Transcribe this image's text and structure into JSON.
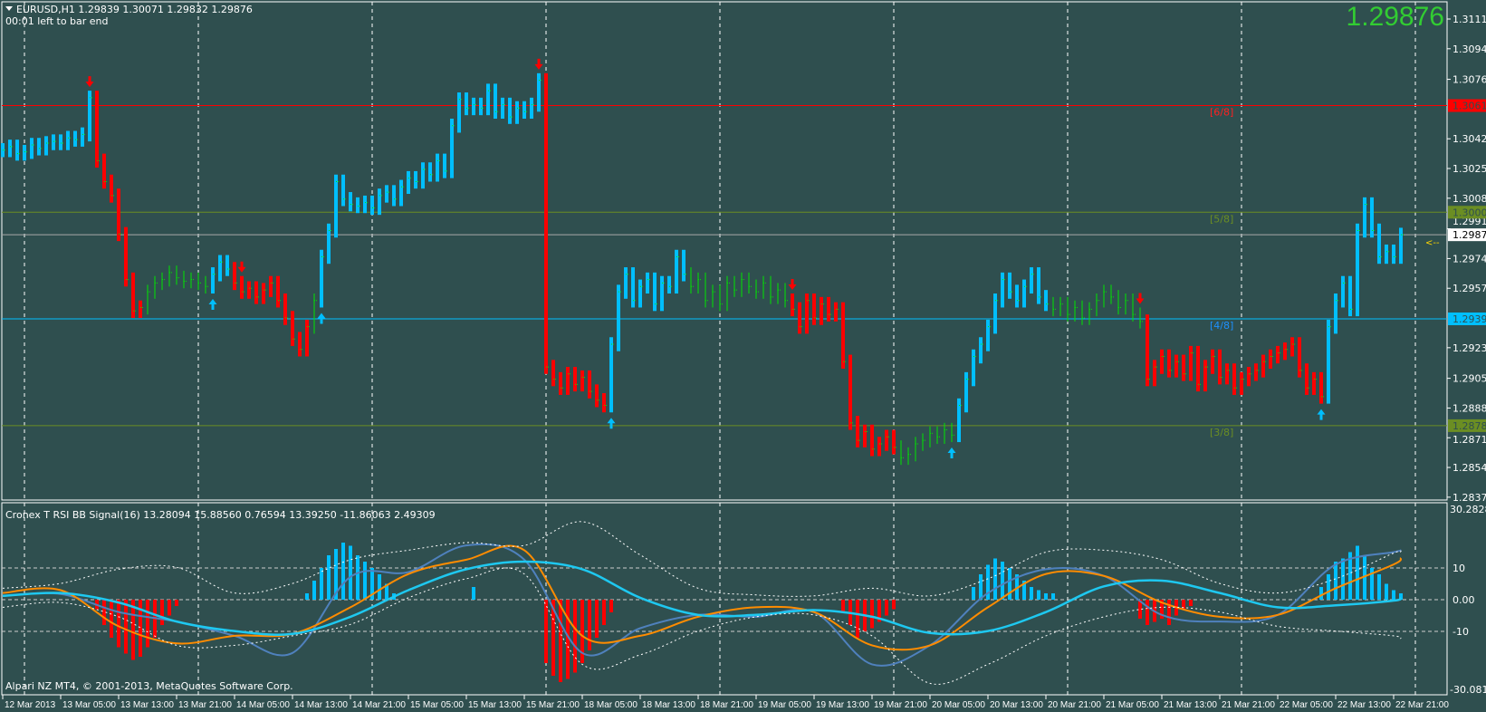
{
  "header": {
    "symbol_line": "EURUSD,H1  1.29839 1.30071 1.29832 1.29876",
    "timer": "00:01 left to bar end",
    "big_price": "1.29876"
  },
  "indicator": {
    "title": "Cronex T RSI BB Signal(16) 13.28094 15.88560 0.76594 13.39250 -11.86063 2.49309",
    "axis_max": "30.28286",
    "axis_min": "-30.08158",
    "levels": [
      "10",
      "0.00",
      "-10"
    ]
  },
  "footer": {
    "copyright": "Alpari NZ MT4, © 2001-2013, MetaQuotes Software Corp."
  },
  "colors": {
    "background": "#2f4f4f",
    "bull": "#00bfff",
    "bear": "#ff0000",
    "neutral": "#00e600",
    "rsi": "#4f81bd",
    "signal": "#ff8c00",
    "slow": "#1ec8f0",
    "bands": "#ffffff"
  },
  "chart_data": [
    {
      "type": "bar",
      "title": "EURUSD,H1",
      "price_ticks": [
        "1.31110",
        "1.30940",
        "1.30765",
        "1.30425",
        "1.30255",
        "1.30085",
        "1.29910",
        "1.29740",
        "1.29570",
        "1.29230",
        "1.29055",
        "1.28885",
        "1.28715",
        "1.28545",
        "1.28375"
      ],
      "date_ticks": [
        "12 Mar 2013",
        "13 Mar 05:00",
        "13 Mar 13:00",
        "13 Mar 21:00",
        "14 Mar 05:00",
        "14 Mar 13:00",
        "14 Mar 21:00",
        "15 Mar 05:00",
        "15 Mar 13:00",
        "15 Mar 21:00",
        "18 Mar 05:00",
        "18 Mar 13:00",
        "18 Mar 21:00",
        "19 Mar 05:00",
        "19 Mar 13:00",
        "19 Mar 21:00",
        "20 Mar 05:00",
        "20 Mar 13:00",
        "20 Mar 21:00",
        "21 Mar 05:00",
        "21 Mar 13:00",
        "21 Mar 21:00",
        "22 Mar 05:00",
        "22 Mar 13:00",
        "22 Mar 21:00"
      ],
      "closes": [
        1.3036,
        1.3038,
        1.3034,
        1.3035,
        1.3039,
        1.3037,
        1.304,
        1.3041,
        1.304,
        1.3043,
        1.3042,
        1.3045,
        1.3066,
        1.303,
        1.3018,
        1.301,
        1.2988,
        1.2962,
        1.2944,
        1.2946,
        1.2955,
        1.296,
        1.2962,
        1.2966,
        1.2963,
        1.2961,
        1.2962,
        1.296,
        1.2958,
        1.2965,
        1.2972,
        1.2968,
        1.296,
        1.2955,
        1.2957,
        1.2952,
        1.2956,
        1.296,
        1.295,
        1.294,
        1.2928,
        1.2922,
        1.2935,
        1.295,
        1.2975,
        1.299,
        1.3018,
        1.3008,
        1.3005,
        1.3004,
        1.3006,
        1.3003,
        1.301,
        1.3012,
        1.3008,
        1.3015,
        1.302,
        1.3018,
        1.3025,
        1.3022,
        1.303,
        1.3024,
        1.305,
        1.3065,
        1.306,
        1.3062,
        1.306,
        1.307,
        1.3058,
        1.3062,
        1.3055,
        1.306,
        1.3058,
        1.3062,
        1.3076,
        1.2912,
        1.2905,
        1.29,
        1.2908,
        1.2902,
        1.2906,
        1.2898,
        1.2893,
        1.289,
        1.2925,
        1.2955,
        1.2965,
        1.295,
        1.2958,
        1.2962,
        1.2948,
        1.296,
        1.2958,
        1.2975,
        1.2965,
        1.2958,
        1.2962,
        1.295,
        1.2955,
        1.2948,
        1.296,
        1.2956,
        1.2962,
        1.2958,
        1.2955,
        1.296,
        1.2952,
        1.2956,
        1.295,
        1.2945,
        1.2935,
        1.295,
        1.294,
        1.2948,
        1.2942,
        1.2945,
        1.2915,
        1.288,
        1.287,
        1.2875,
        1.2865,
        1.2868,
        1.2872,
        1.2866,
        1.286,
        1.2862,
        1.2868,
        1.287,
        1.2874,
        1.2872,
        1.2876,
        1.2873,
        1.289,
        1.2905,
        1.2918,
        1.2925,
        1.2935,
        1.295,
        1.2962,
        1.2955,
        1.295,
        1.2958,
        1.2965,
        1.2952,
        1.2948,
        1.2945,
        1.2948,
        1.2942,
        1.2946,
        1.294,
        1.2945,
        1.295,
        1.2955,
        1.2952,
        1.2946,
        1.295,
        1.2942,
        1.2938,
        1.2905,
        1.2912,
        1.2918,
        1.291,
        1.2915,
        1.2908,
        1.292,
        1.2902,
        1.2912,
        1.2918,
        1.2906,
        1.291,
        1.29,
        1.2905,
        1.2908,
        1.291,
        1.2915,
        1.2918,
        1.292,
        1.2922,
        1.2925,
        1.291,
        1.29,
        1.2905,
        1.2895,
        1.2935,
        1.295,
        1.296,
        1.2945,
        1.299,
        1.3005,
        1.299,
        1.2975,
        1.2978,
        1.2975,
        1.29876
      ],
      "bar_colors": [
        [
          "bull",
          13
        ],
        [
          "bear",
          7
        ],
        [
          "neutral",
          9
        ],
        [
          "bull",
          3
        ],
        [
          "bear",
          11
        ],
        [
          "neutral",
          1
        ],
        [
          "bull",
          31
        ],
        [
          "bear",
          9
        ],
        [
          "bull",
          11
        ],
        [
          "neutral",
          14
        ],
        [
          "bear",
          15
        ],
        [
          "neutral",
          8
        ],
        [
          "bull",
          13
        ],
        [
          "neutral",
          13
        ],
        [
          "bear",
          25
        ],
        [
          "bull",
          11
        ]
      ],
      "arrows": [
        {
          "bar": 12,
          "dir": "down"
        },
        {
          "bar": 33,
          "dir": "down"
        },
        {
          "bar": 74,
          "dir": "down"
        },
        {
          "bar": 109,
          "dir": "down"
        },
        {
          "bar": 157,
          "dir": "down"
        },
        {
          "bar": 29,
          "dir": "up"
        },
        {
          "bar": 44,
          "dir": "up"
        },
        {
          "bar": 84,
          "dir": "up"
        },
        {
          "bar": 131,
          "dir": "up"
        },
        {
          "bar": 182,
          "dir": "up"
        }
      ],
      "levels": [
        {
          "price": "1.30615",
          "label": "[6/8]",
          "color": "#ff0000",
          "text_color": "#ff2020"
        },
        {
          "price": "1.30005",
          "label": "[5/8]",
          "color": "#6b8e23",
          "text_color": "#6b8e23"
        },
        {
          "price": "1.29395",
          "label": "[4/8]",
          "color": "#00bfff",
          "text_color": "#1e90ff"
        },
        {
          "price": "1.28784",
          "label": "[3/8]",
          "color": "#6b8e23",
          "text_color": "#6b8e23"
        }
      ],
      "bid": {
        "price": "1.29876",
        "marker": "<--"
      }
    },
    {
      "type": "line",
      "title": "Cronex T RSI BB Signal(16)",
      "ylim": [
        -30.08158,
        30.28286
      ],
      "x_ticks_ref": "date_ticks",
      "series": [
        {
          "key": "rsi",
          "values": [
            1.2,
            1.8,
            -3.9,
            -6.9,
            -11.4,
            -16.8,
            7.2,
            8.7,
            17.1,
            12.6,
            -16.8,
            -9,
            -4.8,
            -5.4,
            -3.9,
            -20.4,
            -14.4,
            2.1,
            9.6,
            7.5,
            -4.8,
            -6.9,
            -4.8,
            11.1,
            15,
            15.6
          ]
        },
        {
          "key": "signal",
          "values": [
            2.1,
            3,
            -8.4,
            -13.8,
            -11.4,
            -10.8,
            -2.4,
            8.1,
            12.6,
            15.6,
            -11.4,
            -11.4,
            -5.4,
            -2.4,
            -3.9,
            -14.4,
            -14.4,
            -2.4,
            8.1,
            7.5,
            -0.9,
            -5.4,
            -4.8,
            3.6,
            11.1,
            13.2
          ]
        },
        {
          "key": "slow",
          "values": [
            1.2,
            2.1,
            -0.9,
            -6.9,
            -9.9,
            -10.8,
            -5.4,
            3,
            9.6,
            12,
            9.6,
            0.6,
            -4.8,
            -4.8,
            -3.3,
            -5.4,
            -10.5,
            -9.9,
            -3.9,
            4.2,
            6,
            2.1,
            -2.4,
            -1.8,
            -0.3,
            0.6
          ]
        },
        {
          "key": "upper_band",
          "values": [
            3.6,
            5.1,
            9.6,
            10.2,
            2.1,
            5.1,
            12.6,
            15.6,
            18,
            17.1,
            24.6,
            14.1,
            3.6,
            1.5,
            1.2,
            3.6,
            1.2,
            6.6,
            15,
            15.6,
            12.6,
            5.1,
            2.1,
            6.6,
            14.7,
            15
          ]
        },
        {
          "key": "lower_band",
          "values": [
            -2.4,
            -0.9,
            -5.4,
            -14.4,
            -14.4,
            -11.4,
            -7.8,
            0.6,
            6.6,
            8.1,
            -20.4,
            -17.4,
            -9.9,
            -5.4,
            -4.8,
            -11.4,
            -26.4,
            -20.4,
            -11.4,
            -5.4,
            -2.4,
            -3.9,
            -8.4,
            -9.9,
            -11.4,
            -12.3
          ]
        }
      ],
      "histogram_runs": [
        {
          "start": 13,
          "values": [
            -3,
            -8,
            -12,
            -15,
            -17,
            -19,
            -18,
            -15,
            -12,
            -8,
            -5,
            -2
          ]
        },
        {
          "start": 42,
          "values": [
            2,
            6,
            10,
            14,
            16,
            18,
            17,
            14,
            12,
            10,
            8,
            5,
            2
          ]
        },
        {
          "start": 65,
          "values": [
            4
          ]
        },
        {
          "start": 75,
          "values": [
            -20,
            -24,
            -26,
            -25,
            -23,
            -20,
            -16,
            -12,
            -8,
            -4
          ]
        },
        {
          "start": 116,
          "values": [
            -4,
            -8,
            -12,
            -10,
            -9,
            -7,
            -5,
            -3
          ]
        },
        {
          "start": 134,
          "values": [
            4,
            8,
            11,
            13,
            12,
            10,
            8,
            6,
            4,
            3,
            2,
            2
          ]
        },
        {
          "start": 157,
          "values": [
            -6,
            -8,
            -7,
            -6,
            -8,
            -5,
            -3,
            -2
          ]
        },
        {
          "start": 182,
          "values": [
            4,
            8,
            12,
            13,
            15,
            17,
            14,
            10,
            8,
            5,
            3,
            2
          ]
        }
      ]
    }
  ]
}
